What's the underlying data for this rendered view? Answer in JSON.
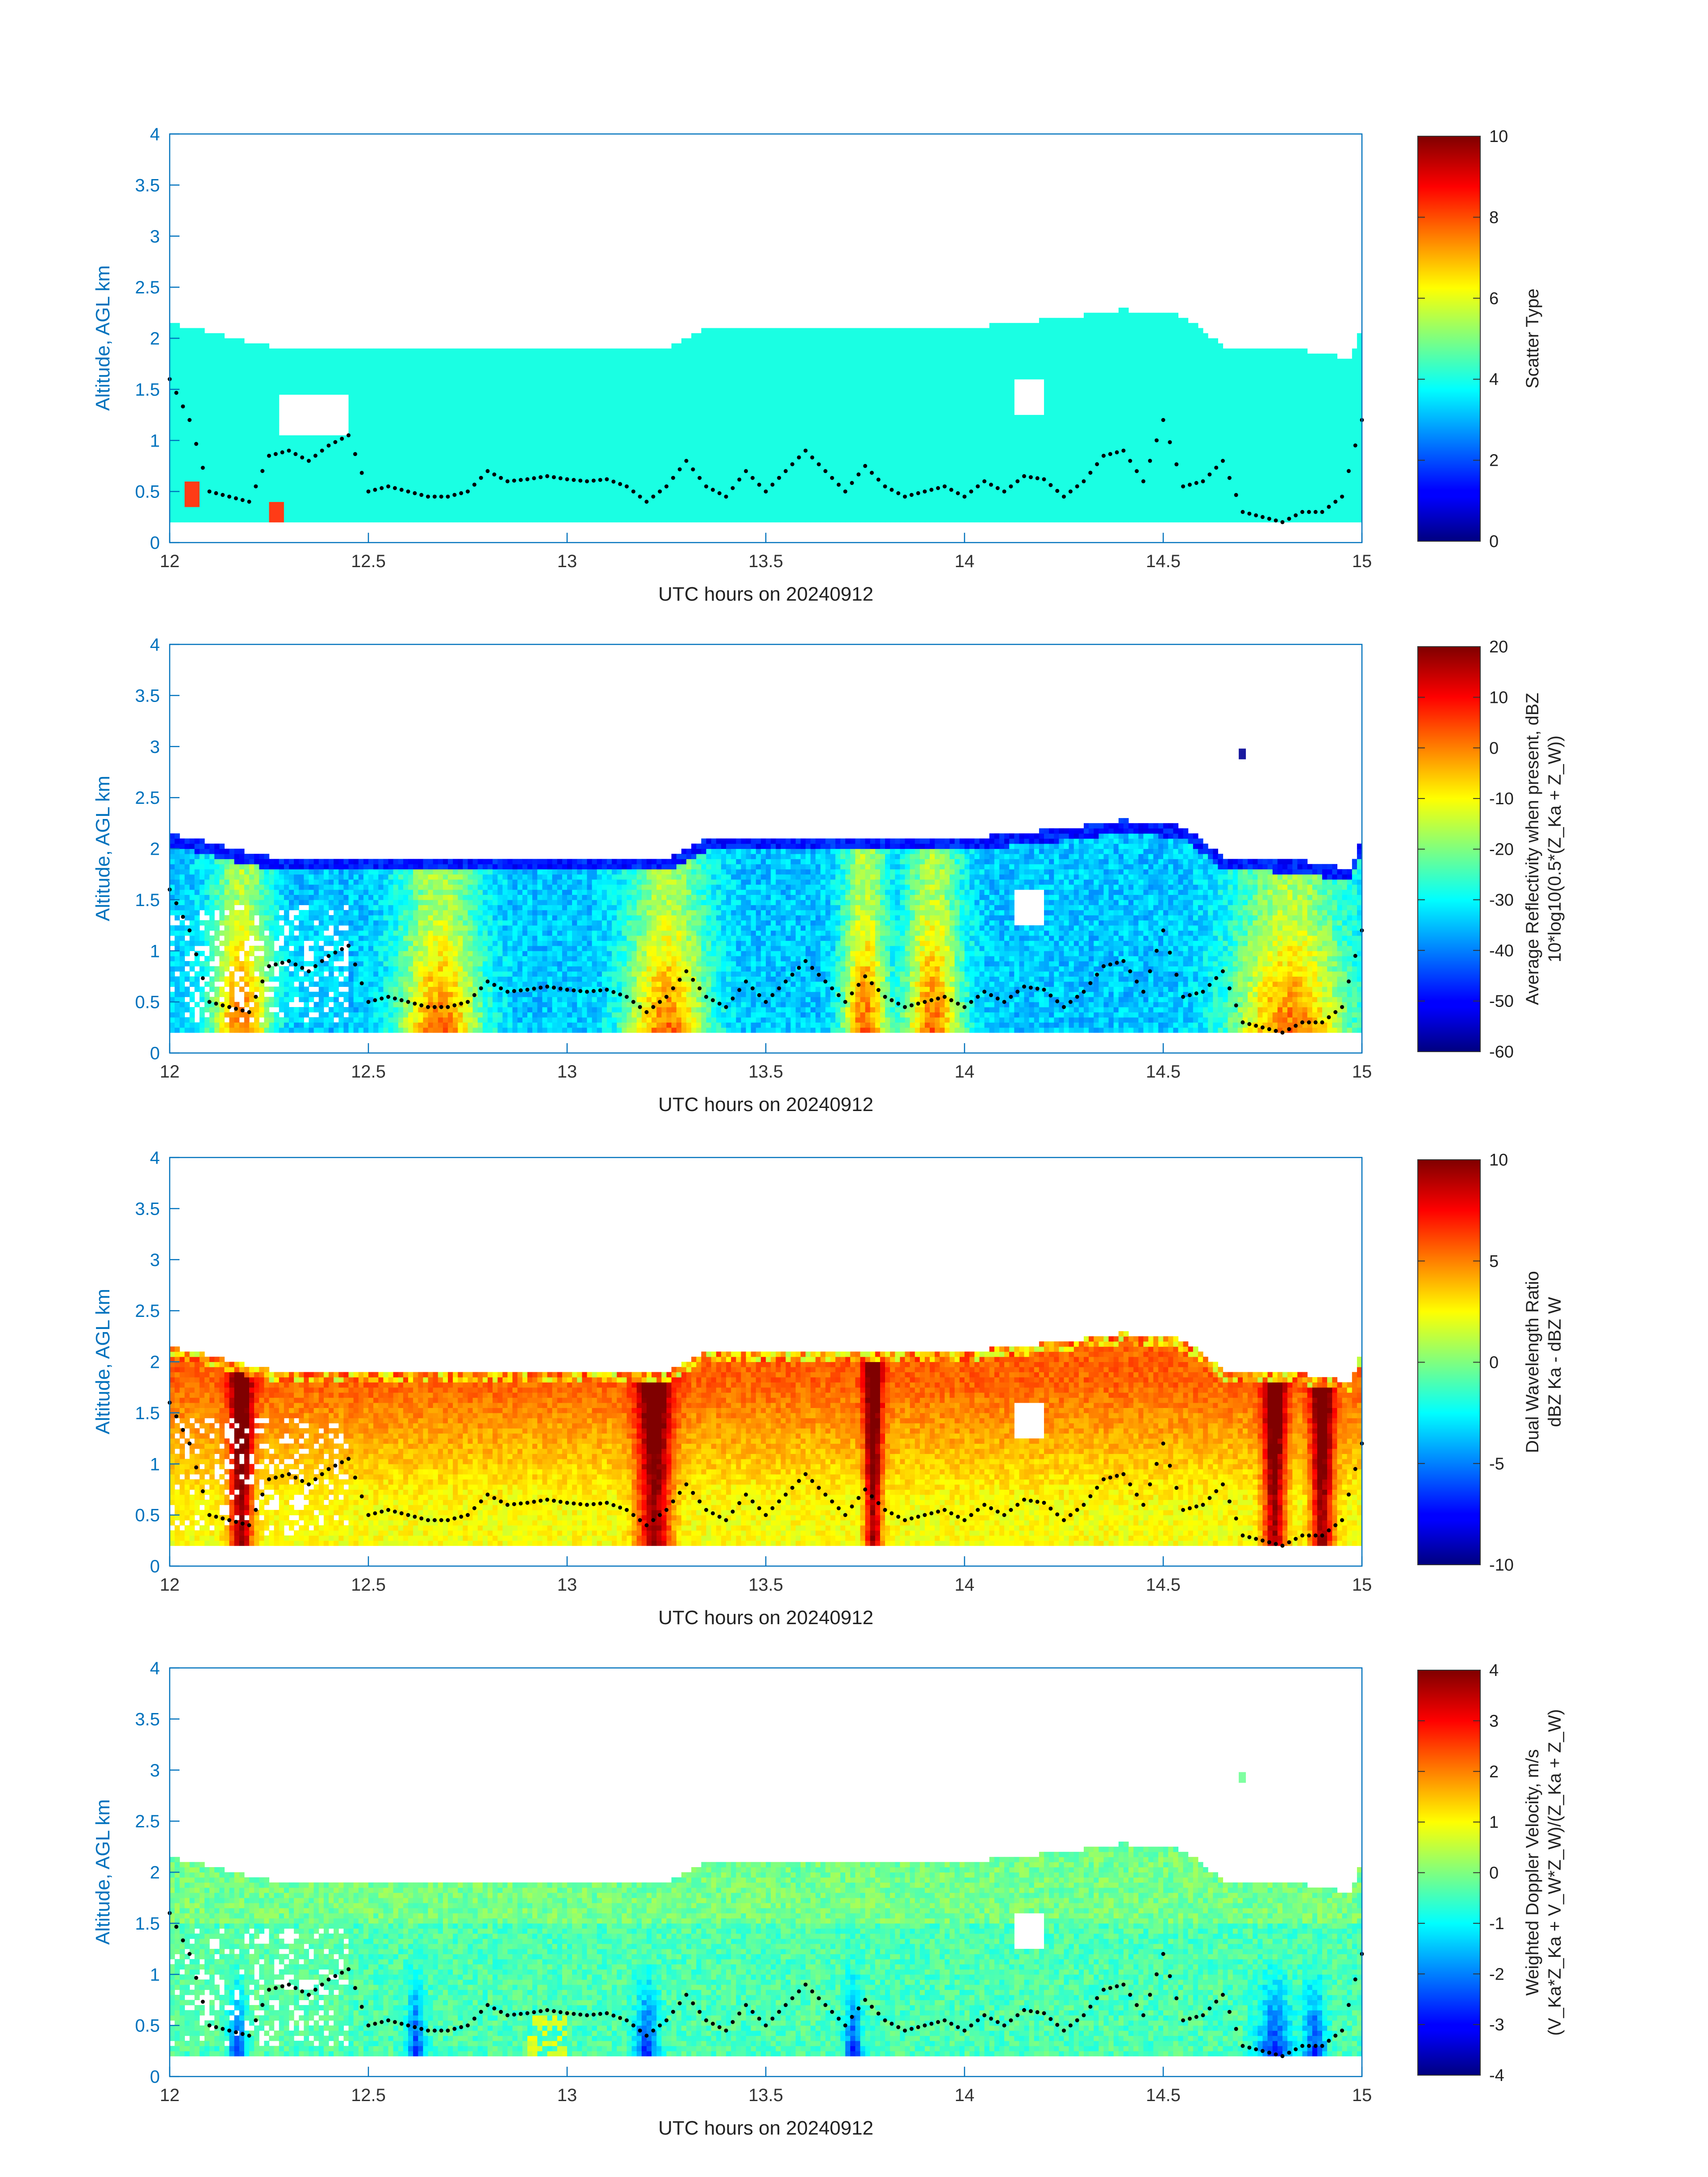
{
  "chart_data": [
    {
      "type": "heatmap",
      "xlabel": "UTC hours on 20240912",
      "ylabel": "Altitude, AGL km",
      "xlim": [
        12,
        15
      ],
      "ylim": [
        0,
        4
      ],
      "x_ticks": [
        "12",
        "12.5",
        "13",
        "13.5",
        "14",
        "14.5",
        "15"
      ],
      "y_ticks": [
        "0",
        "0.5",
        "1",
        "1.5",
        "2",
        "2.5",
        "3",
        "3.5",
        "4"
      ],
      "colorbar": {
        "label_lines": [
          "Scatter Type"
        ],
        "range": [
          0,
          10
        ],
        "ticks": [
          "0",
          "2",
          "4",
          "6",
          "8",
          "10"
        ],
        "colormap": "jet"
      },
      "field": "scatter_type"
    },
    {
      "type": "heatmap",
      "xlabel": "UTC hours on 20240912",
      "ylabel": "Altitude, AGL km",
      "xlim": [
        12,
        15
      ],
      "ylim": [
        0,
        4
      ],
      "x_ticks": [
        "12",
        "12.5",
        "13",
        "13.5",
        "14",
        "14.5",
        "15"
      ],
      "y_ticks": [
        "0",
        "0.5",
        "1",
        "1.5",
        "2",
        "2.5",
        "3",
        "3.5",
        "4"
      ],
      "colorbar": {
        "label_lines": [
          "Average Reflectivity when present, dBZ",
          "10*log10(0.5*(Z_Ka + Z_W))"
        ],
        "range": [
          -60,
          20
        ],
        "ticks": [
          "-60",
          "-50",
          "-40",
          "-30",
          "-20",
          "-10",
          "0",
          "10",
          "20"
        ],
        "colormap": "jet"
      },
      "field": "reflectivity"
    },
    {
      "type": "heatmap",
      "xlabel": "UTC hours on 20240912",
      "ylabel": "Altitude, AGL km",
      "xlim": [
        12,
        15
      ],
      "ylim": [
        0,
        4
      ],
      "x_ticks": [
        "12",
        "12.5",
        "13",
        "13.5",
        "14",
        "14.5",
        "15"
      ],
      "y_ticks": [
        "0",
        "0.5",
        "1",
        "1.5",
        "2",
        "2.5",
        "3",
        "3.5",
        "4"
      ],
      "colorbar": {
        "label_lines": [
          "Dual Wavelength Ratio",
          "dBZ Ka - dBZ W"
        ],
        "range": [
          -10,
          10
        ],
        "ticks": [
          "-10",
          "-5",
          "0",
          "5",
          "10"
        ],
        "colormap": "jet"
      },
      "field": "dwr"
    },
    {
      "type": "heatmap",
      "xlabel": "UTC hours on 20240912",
      "ylabel": "Altitude, AGL km",
      "xlim": [
        12,
        15
      ],
      "ylim": [
        0,
        4
      ],
      "x_ticks": [
        "12",
        "12.5",
        "13",
        "13.5",
        "14",
        "14.5",
        "15"
      ],
      "y_ticks": [
        "0",
        "0.5",
        "1",
        "1.5",
        "2",
        "2.5",
        "3",
        "3.5",
        "4"
      ],
      "colorbar": {
        "label_lines": [
          "Weighted Doppler Velocity, m/s",
          "(V_Ka*Z_Ka + V_W*Z_W)/(Z_Ka + Z_W)"
        ],
        "range": [
          -4,
          4
        ],
        "ticks": [
          "-4",
          "-3",
          "-2",
          "-1",
          "0",
          "1",
          "2",
          "3",
          "4"
        ],
        "colormap": "jet"
      },
      "field": "velocity"
    }
  ],
  "cloud_top_km": {
    "x": [
      12.0,
      12.25,
      12.5,
      12.75,
      13.0,
      13.25,
      13.35,
      13.5,
      13.75,
      14.0,
      14.25,
      14.4,
      14.55,
      14.65,
      14.75,
      14.85,
      14.97,
      15.0
    ],
    "y": [
      2.15,
      1.92,
      1.92,
      1.92,
      1.9,
      1.9,
      2.1,
      2.1,
      2.1,
      2.1,
      2.2,
      2.28,
      2.22,
      1.92,
      1.9,
      1.88,
      1.8,
      2.1
    ]
  },
  "cloud_base_dots_km": {
    "x": [
      12.0,
      12.05,
      12.1,
      12.15,
      12.2,
      12.25,
      12.3,
      12.35,
      12.4,
      12.45,
      12.5,
      12.55,
      12.6,
      12.65,
      12.7,
      12.75,
      12.8,
      12.85,
      12.9,
      12.95,
      13.0,
      13.05,
      13.1,
      13.15,
      13.2,
      13.25,
      13.3,
      13.35,
      13.4,
      13.45,
      13.5,
      13.55,
      13.6,
      13.65,
      13.7,
      13.75,
      13.8,
      13.85,
      13.9,
      13.95,
      14.0,
      14.05,
      14.1,
      14.15,
      14.2,
      14.25,
      14.3,
      14.35,
      14.4,
      14.45,
      14.5,
      14.55,
      14.6,
      14.65,
      14.7,
      14.75,
      14.8,
      14.85,
      14.9,
      14.95,
      15.0
    ],
    "y": [
      1.6,
      1.2,
      0.5,
      0.45,
      0.4,
      0.85,
      0.9,
      0.8,
      0.95,
      1.05,
      0.5,
      0.55,
      0.5,
      0.45,
      0.45,
      0.5,
      0.7,
      0.6,
      0.62,
      0.65,
      0.62,
      0.6,
      0.62,
      0.55,
      0.4,
      0.55,
      0.8,
      0.55,
      0.45,
      0.7,
      0.5,
      0.7,
      0.9,
      0.7,
      0.5,
      0.75,
      0.55,
      0.45,
      0.5,
      0.55,
      0.45,
      0.6,
      0.5,
      0.65,
      0.62,
      0.45,
      0.6,
      0.85,
      0.9,
      0.6,
      1.2,
      0.55,
      0.6,
      0.8,
      0.3,
      0.25,
      0.2,
      0.3,
      0.3,
      0.45,
      1.2
    ]
  },
  "colors": {
    "axis": "#0072BD",
    "scatter_type_cyan": "#1AFFE3",
    "dots": "#000000"
  }
}
